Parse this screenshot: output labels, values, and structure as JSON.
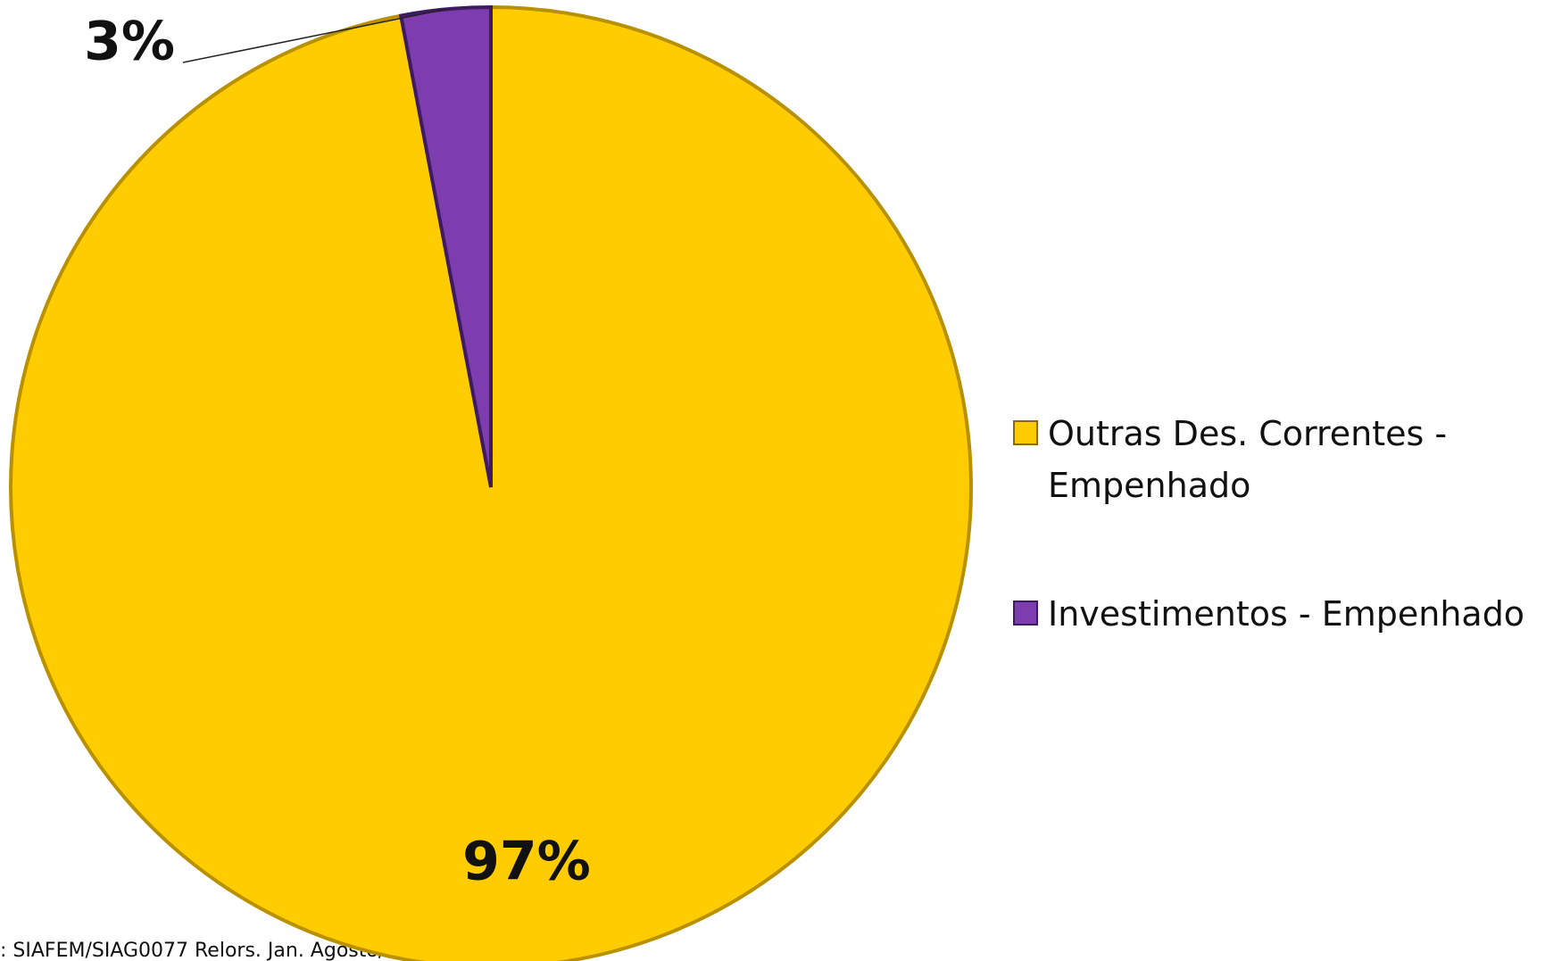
{
  "chart_data": {
    "type": "pie",
    "categories": [
      "Outras Des. Correntes - Empenhado",
      "Investimentos - Empenhado"
    ],
    "values": [
      97,
      3
    ],
    "value_labels": [
      "97%",
      "3%"
    ],
    "colors": [
      "#FFCC00",
      "#7D3DAE"
    ],
    "legend": "right",
    "source": ": SIAFEM/SIAG0077 Relors. Jan. Agosto/"
  }
}
